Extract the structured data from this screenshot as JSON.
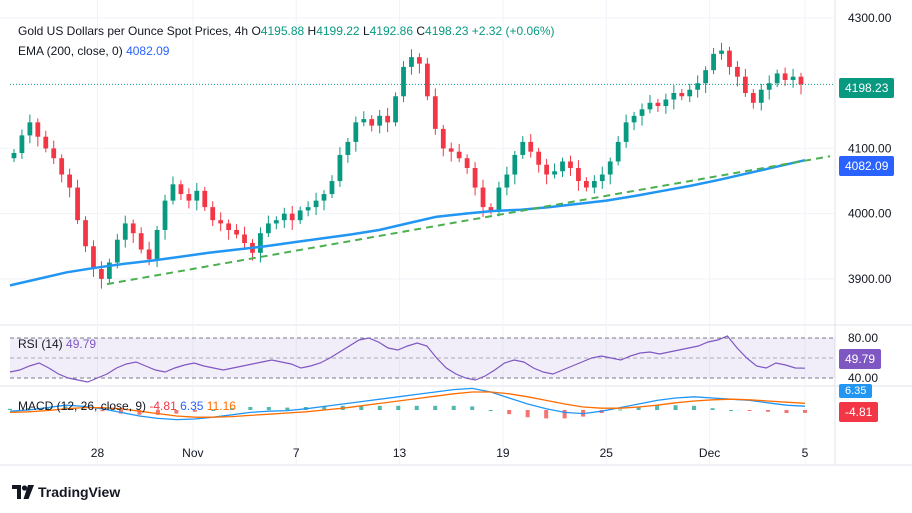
{
  "chart_data": [
    {
      "type": "candlestick",
      "panel": "price",
      "title": "Gold US Dollars per Ounce Spot Prices, 4h",
      "ohlc": {
        "open": "4195.88",
        "high": "4199.22",
        "low": "4192.86",
        "close": "4198.23",
        "change": "+2.32 (+0.06%)"
      },
      "y_ticks": [
        "4300.00",
        "4100.00",
        "4000.00",
        "3900.00"
      ],
      "x_ticks": [
        "28",
        "Nov",
        "7",
        "13",
        "19",
        "25",
        "Dec",
        "5"
      ],
      "ylim": [
        3840,
        4300
      ],
      "last_price": "4198.23",
      "ema_label": "EMA (200, close, 0)",
      "ema_value": "4082.09",
      "close_series": [
        4093,
        4120,
        4140,
        4118,
        4100,
        4085,
        4060,
        4040,
        3990,
        3950,
        3915,
        3900,
        3925,
        3960,
        3985,
        3970,
        3945,
        3930,
        3975,
        4020,
        4045,
        4030,
        4020,
        4035,
        4010,
        3990,
        3985,
        3975,
        3968,
        3955,
        3940,
        3970,
        3985,
        3990,
        4000,
        3990,
        4005,
        4010,
        4020,
        4030,
        4050,
        4090,
        4110,
        4140,
        4145,
        4135,
        4150,
        4140,
        4180,
        4225,
        4240,
        4230,
        4180,
        4130,
        4100,
        4095,
        4085,
        4070,
        4040,
        4010,
        4005,
        4040,
        4060,
        4090,
        4110,
        4095,
        4075,
        4060,
        4065,
        4080,
        4070,
        4050,
        4040,
        4050,
        4060,
        4080,
        4110,
        4140,
        4150,
        4160,
        4170,
        4165,
        4175,
        4185,
        4180,
        4190,
        4200,
        4220,
        4245,
        4250,
        4225,
        4210,
        4185,
        4170,
        4190,
        4200,
        4215,
        4205,
        4210,
        4198
      ],
      "ema_series": [
        3890,
        3900,
        3910,
        3917,
        3923,
        3928,
        3934,
        3940,
        3945,
        3950,
        3956,
        3962,
        3968,
        3975,
        3985,
        3995,
        4000,
        4004,
        4006,
        4010,
        4015,
        4020,
        4027,
        4035,
        4043,
        4052,
        4062,
        4072,
        4082
      ],
      "trendline": {
        "from": [
          3892,
          0
        ],
        "to": [
          4088,
          1
        ]
      }
    },
    {
      "type": "line",
      "panel": "rsi",
      "label": "RSI (14)",
      "value": "49.79",
      "y_ticks": [
        "80.00",
        "40.00"
      ],
      "ylim": [
        20,
        90
      ],
      "series": [
        46,
        48,
        52,
        55,
        50,
        44,
        40,
        38,
        36,
        40,
        44,
        50,
        54,
        56,
        52,
        48,
        46,
        50,
        53,
        55,
        52,
        50,
        48,
        50,
        52,
        54,
        56,
        58,
        56,
        54,
        50,
        52,
        55,
        60,
        66,
        72,
        78,
        80,
        76,
        70,
        68,
        72,
        75,
        72,
        60,
        50,
        44,
        40,
        38,
        42,
        48,
        55,
        58,
        56,
        50,
        46,
        44,
        48,
        52,
        56,
        60,
        62,
        60,
        58,
        62,
        65,
        66,
        64,
        66,
        68,
        70,
        72,
        76,
        78,
        82,
        70,
        60,
        52,
        50,
        55,
        53,
        50,
        49.79
      ]
    },
    {
      "type": "line",
      "panel": "macd",
      "label": "MACD (12, 26, close, 9)",
      "values": {
        "histogram": "-4.81",
        "macd": "6.35",
        "signal": "11.16"
      },
      "series": [
        {
          "name": "MACD",
          "values": [
            -2,
            0,
            4,
            8,
            6,
            2,
            -4,
            -10,
            -14,
            -16,
            -15,
            -12,
            -8,
            -4,
            -2,
            -1,
            2,
            6,
            10,
            14,
            18,
            22,
            26,
            30,
            34,
            36,
            30,
            20,
            10,
            2,
            -4,
            -6,
            -2,
            4,
            10,
            16,
            20,
            22,
            20,
            18,
            16,
            12,
            8,
            6.35
          ]
        },
        {
          "name": "Signal",
          "values": [
            -4,
            -3,
            -1,
            2,
            4,
            4,
            2,
            -2,
            -6,
            -10,
            -12,
            -12,
            -11,
            -9,
            -7,
            -5,
            -3,
            0,
            3,
            7,
            11,
            15,
            19,
            23,
            27,
            30,
            30,
            27,
            22,
            16,
            10,
            5,
            3,
            3,
            5,
            8,
            12,
            15,
            17,
            18,
            17,
            15,
            13,
            11.16
          ]
        }
      ]
    }
  ],
  "colors": {
    "up": "#089981",
    "down": "#f23645",
    "ema": "#2196f3",
    "trendline": "#4caf50",
    "rsi": "#7e57c2",
    "macd": "#2196f3",
    "signal": "#ff6d00",
    "grid": "#f0f3fa"
  },
  "brand": "TradingView"
}
